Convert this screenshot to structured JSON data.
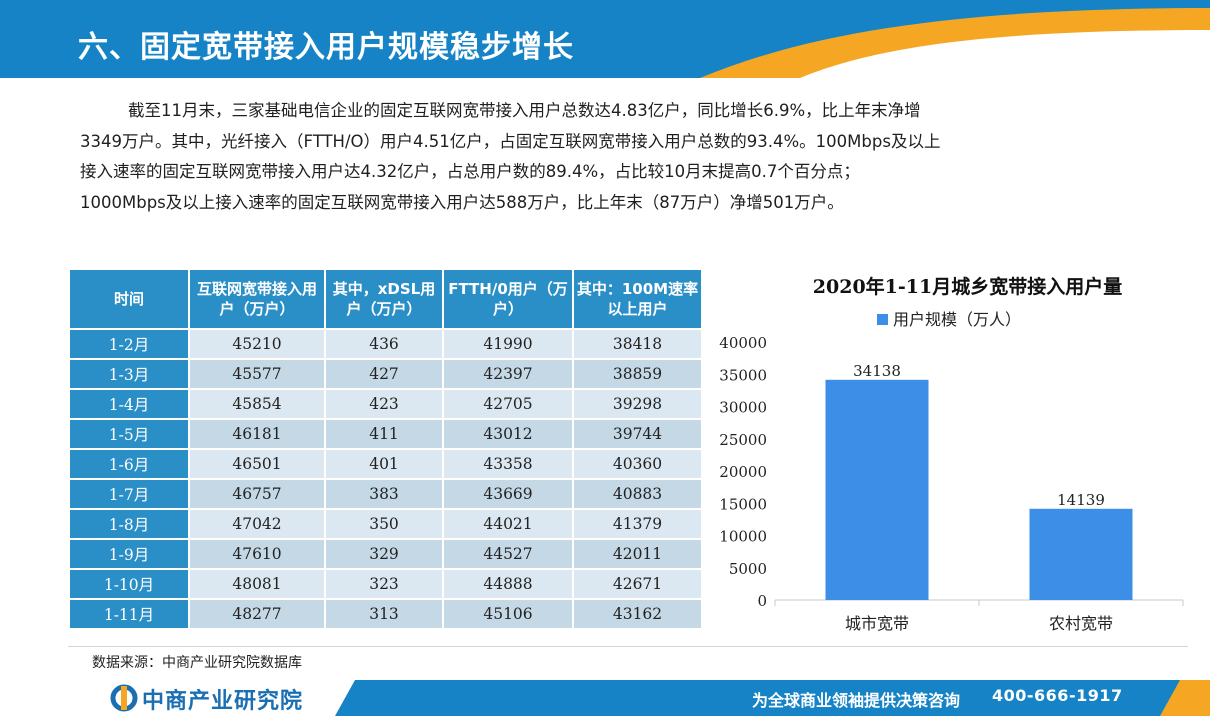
{
  "header": {
    "title": "六、固定宽带接入用户规模稳步增长"
  },
  "intro": {
    "lines": [
      "截至11月末，三家基础电信企业的固定互联网宽带接入用户总数达4.83亿户，同比增长6.9%，比上年末净增",
      "3349万户。其中，光纤接入（FTTH/O）用户4.51亿户，占固定互联网宽带接入用户总数的93.4%。100Mbps及以上",
      "接入速率的固定互联网宽带接入用户达4.32亿户，占总用户数的89.4%，占比较10月末提高0.7个百分点；",
      "1000Mbps及以上接入速率的固定互联网宽带接入用户达588万户，比上年末（87万户）净增501万户。"
    ]
  },
  "table": {
    "headers": [
      "时间",
      "互联网宽带接入用户（万户）",
      "其中，xDSL用户（万户）",
      "FTTH/0用户（万户）",
      "其中：100M速率以上用户"
    ],
    "rows": [
      [
        "1-2月",
        "45210",
        "436",
        "41990",
        "38418"
      ],
      [
        "1-3月",
        "45577",
        "427",
        "42397",
        "38859"
      ],
      [
        "1-4月",
        "45854",
        "423",
        "42705",
        "39298"
      ],
      [
        "1-5月",
        "46181",
        "411",
        "43012",
        "39744"
      ],
      [
        "1-6月",
        "46501",
        "401",
        "43358",
        "40360"
      ],
      [
        "1-7月",
        "46757",
        "383",
        "43669",
        "40883"
      ],
      [
        "1-8月",
        "47042",
        "350",
        "44021",
        "41379"
      ],
      [
        "1-9月",
        "47610",
        "329",
        "44527",
        "42011"
      ],
      [
        "1-10月",
        "48081",
        "323",
        "44888",
        "42671"
      ],
      [
        "1-11月",
        "48277",
        "313",
        "45106",
        "43162"
      ]
    ]
  },
  "chart_data": {
    "type": "bar",
    "title": "2020年1-11月城乡宽带接入用户量",
    "categories": [
      "城市宽带",
      "农村宽带"
    ],
    "series": [
      {
        "name": "用户规模（万人）",
        "values": [
          34138,
          14139
        ]
      }
    ],
    "ylim": [
      0,
      40000
    ],
    "yticks": [
      0,
      5000,
      10000,
      15000,
      20000,
      25000,
      30000,
      35000,
      40000
    ],
    "legend_position": "top",
    "grid": false,
    "bar_color": "#3d8ee6"
  },
  "source": {
    "text": "数据来源：中商产业研究院数据库"
  },
  "footer": {
    "brand": "中商产业研究院",
    "slogan": "为全球商业领袖提供决策咨询",
    "phone": "400-666-1917"
  },
  "colors": {
    "header_blue": "#1583c6",
    "accent_orange": "#f5a623",
    "table_header": "#2b8fc7"
  }
}
